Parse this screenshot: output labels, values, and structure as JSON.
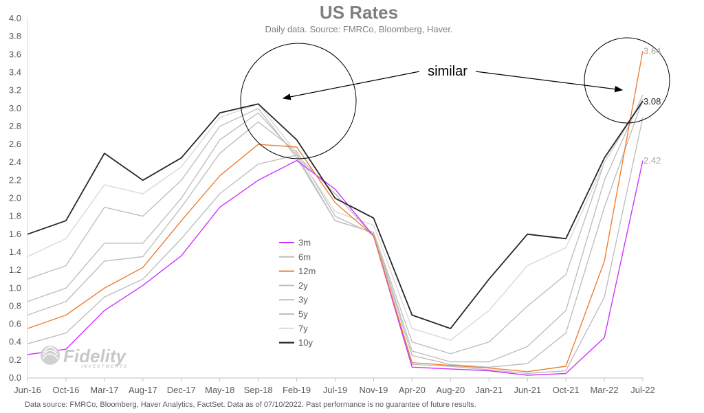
{
  "chart_data": {
    "type": "line",
    "title": "US Rates",
    "subtitle": "Daily data.  Source: FMRCo, Bloomberg, Haver.",
    "footnote": "Data source: FMRCo, Bloomberg, Haver Analytics, FactSet. Data as of 07/10/2022. Past performance is no guarantee of future results.",
    "logo_text": "Fidelity",
    "logo_subtext": "INVESTMENTS",
    "x_tick_labels": [
      "Jun-16",
      "Oct-16",
      "Mar-17",
      "Aug-17",
      "Dec-17",
      "May-18",
      "Sep-18",
      "Feb-19",
      "Jul-19",
      "Nov-19",
      "Apr-20",
      "Aug-20",
      "Jan-21",
      "Jun-21",
      "Oct-21",
      "Mar-22",
      "Jul-22"
    ],
    "x": [
      "Jun-16",
      "Oct-16",
      "Mar-17",
      "Aug-17",
      "Dec-17",
      "May-18",
      "Sep-18",
      "Feb-19",
      "Jul-19",
      "Nov-19",
      "Apr-20",
      "Aug-20",
      "Jan-21",
      "Jun-21",
      "Oct-21",
      "Mar-22",
      "Jul-22"
    ],
    "ylim": [
      0.0,
      4.0
    ],
    "y_tick_labels": [
      "0.0",
      "0.2",
      "0.4",
      "0.6",
      "0.8",
      "1.0",
      "1.2",
      "1.4",
      "1.6",
      "1.8",
      "2.0",
      "2.2",
      "2.4",
      "2.6",
      "2.8",
      "3.0",
      "3.2",
      "3.4",
      "3.6",
      "3.8",
      "4.0"
    ],
    "grid": false,
    "legend_position": "center",
    "series": [
      {
        "name": "3m",
        "color": "#cc33ff",
        "values": [
          0.26,
          0.32,
          0.75,
          1.03,
          1.36,
          1.9,
          2.2,
          2.42,
          2.1,
          1.58,
          0.12,
          0.1,
          0.08,
          0.03,
          0.05,
          0.45,
          2.42
        ]
      },
      {
        "name": "6m",
        "color": "#bfbfbf",
        "values": [
          0.38,
          0.5,
          0.9,
          1.1,
          1.55,
          2.05,
          2.38,
          2.48,
          2.05,
          1.58,
          0.15,
          0.13,
          0.09,
          0.05,
          0.08,
          0.9,
          2.9
        ]
      },
      {
        "name": "12m",
        "color": "#ed7d31",
        "values": [
          0.55,
          0.7,
          1.0,
          1.23,
          1.75,
          2.25,
          2.6,
          2.57,
          1.95,
          1.58,
          0.17,
          0.14,
          0.11,
          0.07,
          0.13,
          1.3,
          3.64
        ]
      },
      {
        "name": "2y",
        "color": "#bfbfbf",
        "values": [
          0.7,
          0.85,
          1.3,
          1.35,
          1.9,
          2.5,
          2.85,
          2.52,
          1.8,
          1.6,
          0.25,
          0.15,
          0.12,
          0.16,
          0.5,
          1.9,
          3.1
        ]
      },
      {
        "name": "3y",
        "color": "#bfbfbf",
        "values": [
          0.85,
          1.0,
          1.5,
          1.5,
          2.0,
          2.65,
          2.95,
          2.48,
          1.75,
          1.62,
          0.3,
          0.18,
          0.18,
          0.35,
          0.75,
          2.2,
          3.15
        ]
      },
      {
        "name": "5y",
        "color": "#bfbfbf",
        "values": [
          1.1,
          1.25,
          1.9,
          1.8,
          2.2,
          2.8,
          3.0,
          2.45,
          1.75,
          1.62,
          0.4,
          0.27,
          0.4,
          0.8,
          1.15,
          2.4,
          3.1
        ]
      },
      {
        "name": "7y",
        "color": "#d9d9d9",
        "values": [
          1.35,
          1.55,
          2.15,
          2.05,
          2.35,
          2.9,
          3.05,
          2.5,
          1.85,
          1.7,
          0.55,
          0.42,
          0.75,
          1.25,
          1.45,
          2.4,
          3.08
        ]
      },
      {
        "name": "10y",
        "color": "#262626",
        "values": [
          1.6,
          1.75,
          2.5,
          2.2,
          2.45,
          2.95,
          3.05,
          2.65,
          2.0,
          1.78,
          0.7,
          0.55,
          1.1,
          1.6,
          1.55,
          2.45,
          3.08
        ]
      }
    ],
    "end_labels": [
      {
        "text": "3.64",
        "value": 3.64,
        "color": "#a6a6a6"
      },
      {
        "text": "3.08",
        "value": 3.08,
        "color": "#262626"
      },
      {
        "text": "2.42",
        "value": 2.42,
        "color": "#a6a6a6"
      }
    ],
    "annotation": {
      "text": "similar"
    }
  }
}
